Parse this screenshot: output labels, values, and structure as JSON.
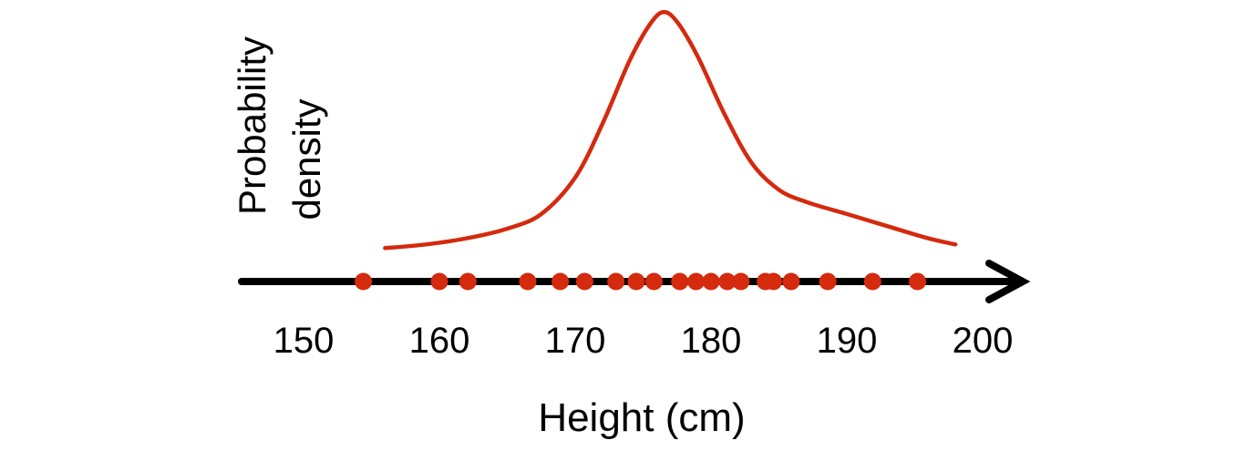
{
  "chart_data": {
    "type": "scatter",
    "title": "",
    "xlabel": "Height (cm)",
    "ylabel_lines": [
      "Probability",
      "density"
    ],
    "xlim": [
      145,
      200
    ],
    "x_ticks": [
      150,
      160,
      170,
      180,
      190,
      200
    ],
    "x_tick_labels": [
      "150",
      "160",
      "170",
      "180",
      "190",
      "200"
    ],
    "grid": false,
    "colors": {
      "points": "#d42a0e",
      "curve": "#d42a0e",
      "axis": "#000000"
    },
    "points_x": [
      154.4,
      160.0,
      162.1,
      166.5,
      168.9,
      170.7,
      173.0,
      174.5,
      175.8,
      177.7,
      178.9,
      180.0,
      181.2,
      182.2,
      184.0,
      184.6,
      185.9,
      188.6,
      191.9,
      195.2
    ],
    "density_curve": {
      "x": [
        156,
        159,
        162,
        165,
        167.5,
        170,
        172,
        174,
        175.5,
        176.5,
        177.5,
        179,
        181,
        183,
        185,
        187,
        190,
        193,
        196,
        198
      ],
      "y": [
        0.01,
        0.025,
        0.05,
        0.09,
        0.15,
        0.3,
        0.52,
        0.78,
        0.93,
        0.98,
        0.94,
        0.8,
        0.56,
        0.36,
        0.25,
        0.2,
        0.15,
        0.1,
        0.05,
        0.025
      ]
    }
  }
}
